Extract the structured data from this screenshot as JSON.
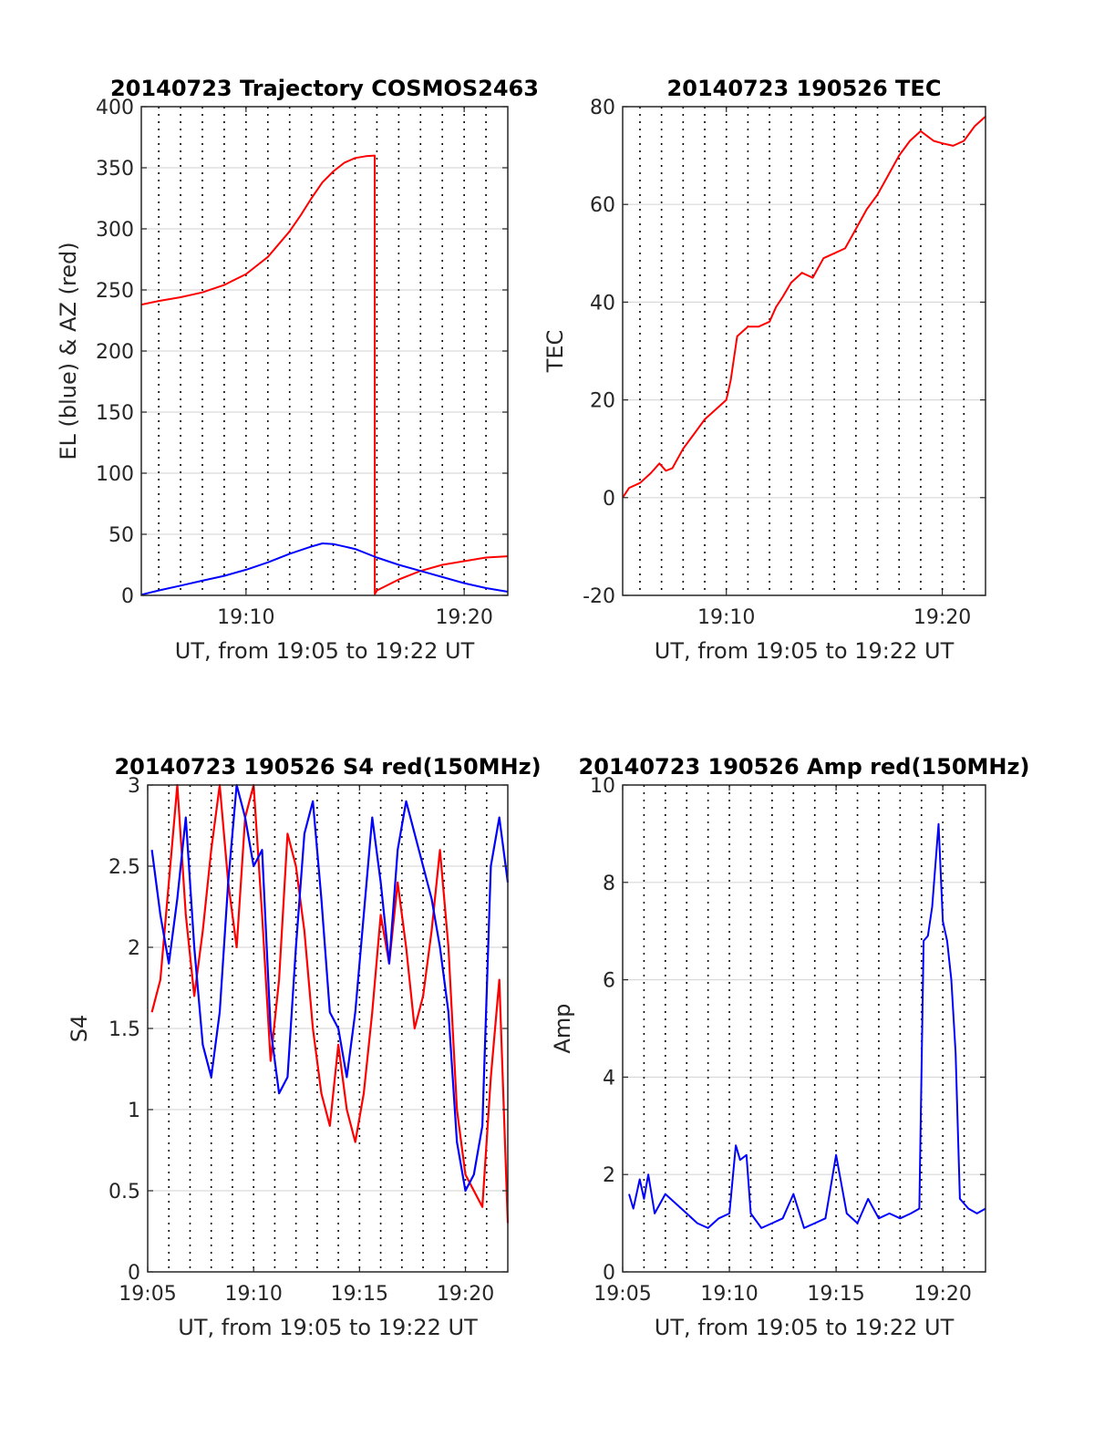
{
  "colors": {
    "el": "#0000ff",
    "az": "#ff0000",
    "tec": "#ff0000",
    "s4_red": "#ff0000",
    "s4_blue": "#0000ff",
    "amp": "#0000ff"
  },
  "chart_data": [
    {
      "id": "trajectory",
      "type": "line",
      "title": "20140723 Trajectory COSMOS2463",
      "xlabel": "UT, from 19:05 to 19:22 UT",
      "ylabel": "EL (blue) & AZ (red)",
      "xlim": [
        5.2,
        22.0
      ],
      "ylim": [
        0,
        400
      ],
      "yticks": [
        0,
        50,
        100,
        150,
        200,
        250,
        300,
        350,
        400
      ],
      "xticks": [
        10,
        20
      ],
      "xtick_labels": [
        "19:10",
        "19:20"
      ],
      "grid": "vertical dotted every minute, horizontal light",
      "series": [
        {
          "color_key": "az",
          "x": [
            5.2,
            6,
            7,
            8,
            9,
            10,
            11,
            12,
            12.5,
            13,
            13.5,
            14,
            14.5,
            15,
            15.5,
            15.9,
            15.901,
            16,
            17,
            18,
            19,
            20,
            21,
            22
          ],
          "y": [
            238,
            241,
            244,
            248,
            254,
            263,
            277,
            298,
            311,
            325,
            338,
            347,
            354,
            358,
            359.5,
            360,
            1,
            4,
            13,
            20,
            25,
            28,
            31,
            32
          ]
        },
        {
          "color_key": "el",
          "x": [
            5.2,
            6,
            7,
            8,
            9,
            10,
            11,
            12,
            13,
            13.5,
            14,
            15,
            16,
            17,
            18,
            19,
            20,
            21,
            22
          ],
          "y": [
            0.5,
            4,
            8,
            12,
            16,
            21,
            27,
            34,
            40,
            42.5,
            42,
            38,
            31,
            25,
            20,
            15,
            10,
            6,
            3
          ]
        }
      ]
    },
    {
      "id": "tec",
      "type": "line",
      "title": "20140723 190526 TEC",
      "xlabel": "UT, from 19:05 to 19:22 UT",
      "ylabel": "TEC",
      "xlim": [
        5.2,
        22.0
      ],
      "ylim": [
        -20,
        80
      ],
      "yticks": [
        -20,
        0,
        20,
        40,
        60,
        80
      ],
      "xticks": [
        10,
        20
      ],
      "xtick_labels": [
        "19:10",
        "19:20"
      ],
      "grid": "vertical dotted every minute, horizontal light",
      "series": [
        {
          "color_key": "tec",
          "x": [
            5.2,
            5.5,
            6,
            6.5,
            6.9,
            7.2,
            7.5,
            8,
            8.5,
            9,
            9.5,
            10,
            10.2,
            10.5,
            11,
            11.5,
            12,
            12.3,
            12.6,
            13,
            13.5,
            14,
            14.5,
            15,
            15.5,
            16,
            16.5,
            17,
            17.5,
            18,
            18.5,
            19,
            19.3,
            19.6,
            20,
            20.5,
            21,
            21.5,
            22
          ],
          "y": [
            0,
            2,
            3,
            5,
            7,
            5.5,
            6,
            10,
            13,
            16,
            18,
            20,
            24,
            33,
            35,
            35,
            36,
            39,
            41,
            44,
            46,
            45,
            49,
            50,
            51,
            55,
            59,
            62,
            66,
            70,
            73,
            75,
            74,
            73,
            72.5,
            72,
            73,
            76,
            78
          ]
        }
      ]
    },
    {
      "id": "s4",
      "type": "line",
      "title": "20140723 190526 S4 red(150MHz)",
      "xlabel": "UT, from 19:05 to 19:22 UT",
      "ylabel": "S4",
      "xlim": [
        5.0,
        22.0
      ],
      "ylim": [
        0,
        3
      ],
      "yticks": [
        0,
        0.5,
        1,
        1.5,
        2,
        2.5,
        3
      ],
      "xticks": [
        5,
        10,
        15,
        20
      ],
      "xtick_labels": [
        "19:05",
        "19:10",
        "19:15",
        "19:20"
      ],
      "grid": "vertical dotted every minute, horizontal light",
      "series": [
        {
          "color_key": "s4_red",
          "x": [
            5.2,
            5.6,
            6.0,
            6.4,
            6.8,
            7.2,
            7.6,
            8.0,
            8.4,
            8.8,
            9.2,
            9.6,
            10.0,
            10.4,
            10.8,
            11.2,
            11.6,
            12.0,
            12.4,
            12.8,
            13.2,
            13.6,
            14.0,
            14.4,
            14.8,
            15.2,
            15.6,
            16.0,
            16.4,
            16.8,
            17.2,
            17.6,
            18.0,
            18.4,
            18.8,
            19.2,
            19.6,
            20.0,
            20.4,
            20.8,
            21.2,
            21.6,
            22.0
          ],
          "y": [
            1.6,
            1.8,
            2.4,
            3.0,
            2.2,
            1.7,
            2.1,
            2.6,
            3.0,
            2.4,
            2.0,
            2.8,
            3.0,
            2.2,
            1.3,
            1.8,
            2.7,
            2.5,
            2.1,
            1.5,
            1.1,
            0.9,
            1.4,
            1.0,
            0.8,
            1.1,
            1.6,
            2.2,
            1.9,
            2.4,
            2.0,
            1.5,
            1.7,
            2.1,
            2.6,
            2.0,
            1.0,
            0.6,
            0.5,
            0.4,
            1.2,
            1.8,
            0.3
          ]
        },
        {
          "color_key": "s4_blue",
          "x": [
            5.2,
            5.6,
            6.0,
            6.4,
            6.8,
            7.2,
            7.6,
            8.0,
            8.4,
            8.8,
            9.2,
            9.6,
            10.0,
            10.4,
            10.8,
            11.2,
            11.6,
            12.0,
            12.4,
            12.8,
            13.2,
            13.6,
            14.0,
            14.4,
            14.8,
            15.2,
            15.6,
            16.0,
            16.4,
            16.8,
            17.2,
            17.6,
            18.0,
            18.4,
            18.8,
            19.2,
            19.6,
            20.0,
            20.4,
            20.8,
            21.2,
            21.6,
            22.0
          ],
          "y": [
            2.6,
            2.2,
            1.9,
            2.3,
            2.8,
            2.0,
            1.4,
            1.2,
            1.6,
            2.4,
            3.0,
            2.8,
            2.5,
            2.6,
            1.5,
            1.1,
            1.2,
            2.0,
            2.7,
            2.9,
            2.3,
            1.6,
            1.5,
            1.2,
            1.6,
            2.2,
            2.8,
            2.4,
            1.9,
            2.6,
            2.9,
            2.7,
            2.5,
            2.3,
            2.0,
            1.6,
            0.8,
            0.5,
            0.6,
            0.9,
            2.5,
            2.8,
            2.4
          ]
        }
      ]
    },
    {
      "id": "amp",
      "type": "line",
      "title": "20140723 190526 Amp red(150MHz)",
      "xlabel": "UT, from 19:05 to 19:22 UT",
      "ylabel": "Amp",
      "xlim": [
        5.0,
        22.0
      ],
      "ylim": [
        0,
        10
      ],
      "yticks": [
        0,
        2,
        4,
        6,
        8,
        10
      ],
      "xticks": [
        5,
        10,
        15,
        20
      ],
      "xtick_labels": [
        "19:05",
        "19:10",
        "19:15",
        "19:20"
      ],
      "grid": "vertical dotted every minute, horizontal light",
      "series": [
        {
          "color_key": "amp",
          "x": [
            5.3,
            5.5,
            5.8,
            6.0,
            6.2,
            6.5,
            7.0,
            7.5,
            8.0,
            8.5,
            9.0,
            9.5,
            10.0,
            10.3,
            10.5,
            10.8,
            11.0,
            11.5,
            12.0,
            12.5,
            13.0,
            13.5,
            14.0,
            14.5,
            15.0,
            15.5,
            16.0,
            16.5,
            17.0,
            17.5,
            18.0,
            18.5,
            18.9,
            19.1,
            19.3,
            19.5,
            19.8,
            20.0,
            20.2,
            20.4,
            20.6,
            20.8,
            21.2,
            21.6,
            22.0
          ],
          "y": [
            1.6,
            1.3,
            1.9,
            1.5,
            2.0,
            1.2,
            1.6,
            1.4,
            1.2,
            1.0,
            0.9,
            1.1,
            1.2,
            2.6,
            2.3,
            2.4,
            1.2,
            0.9,
            1.0,
            1.1,
            1.6,
            0.9,
            1.0,
            1.1,
            2.4,
            1.2,
            1.0,
            1.5,
            1.1,
            1.2,
            1.1,
            1.2,
            1.3,
            6.8,
            6.9,
            7.5,
            9.2,
            7.2,
            6.8,
            6.0,
            4.5,
            1.5,
            1.3,
            1.2,
            1.3
          ]
        }
      ]
    }
  ]
}
